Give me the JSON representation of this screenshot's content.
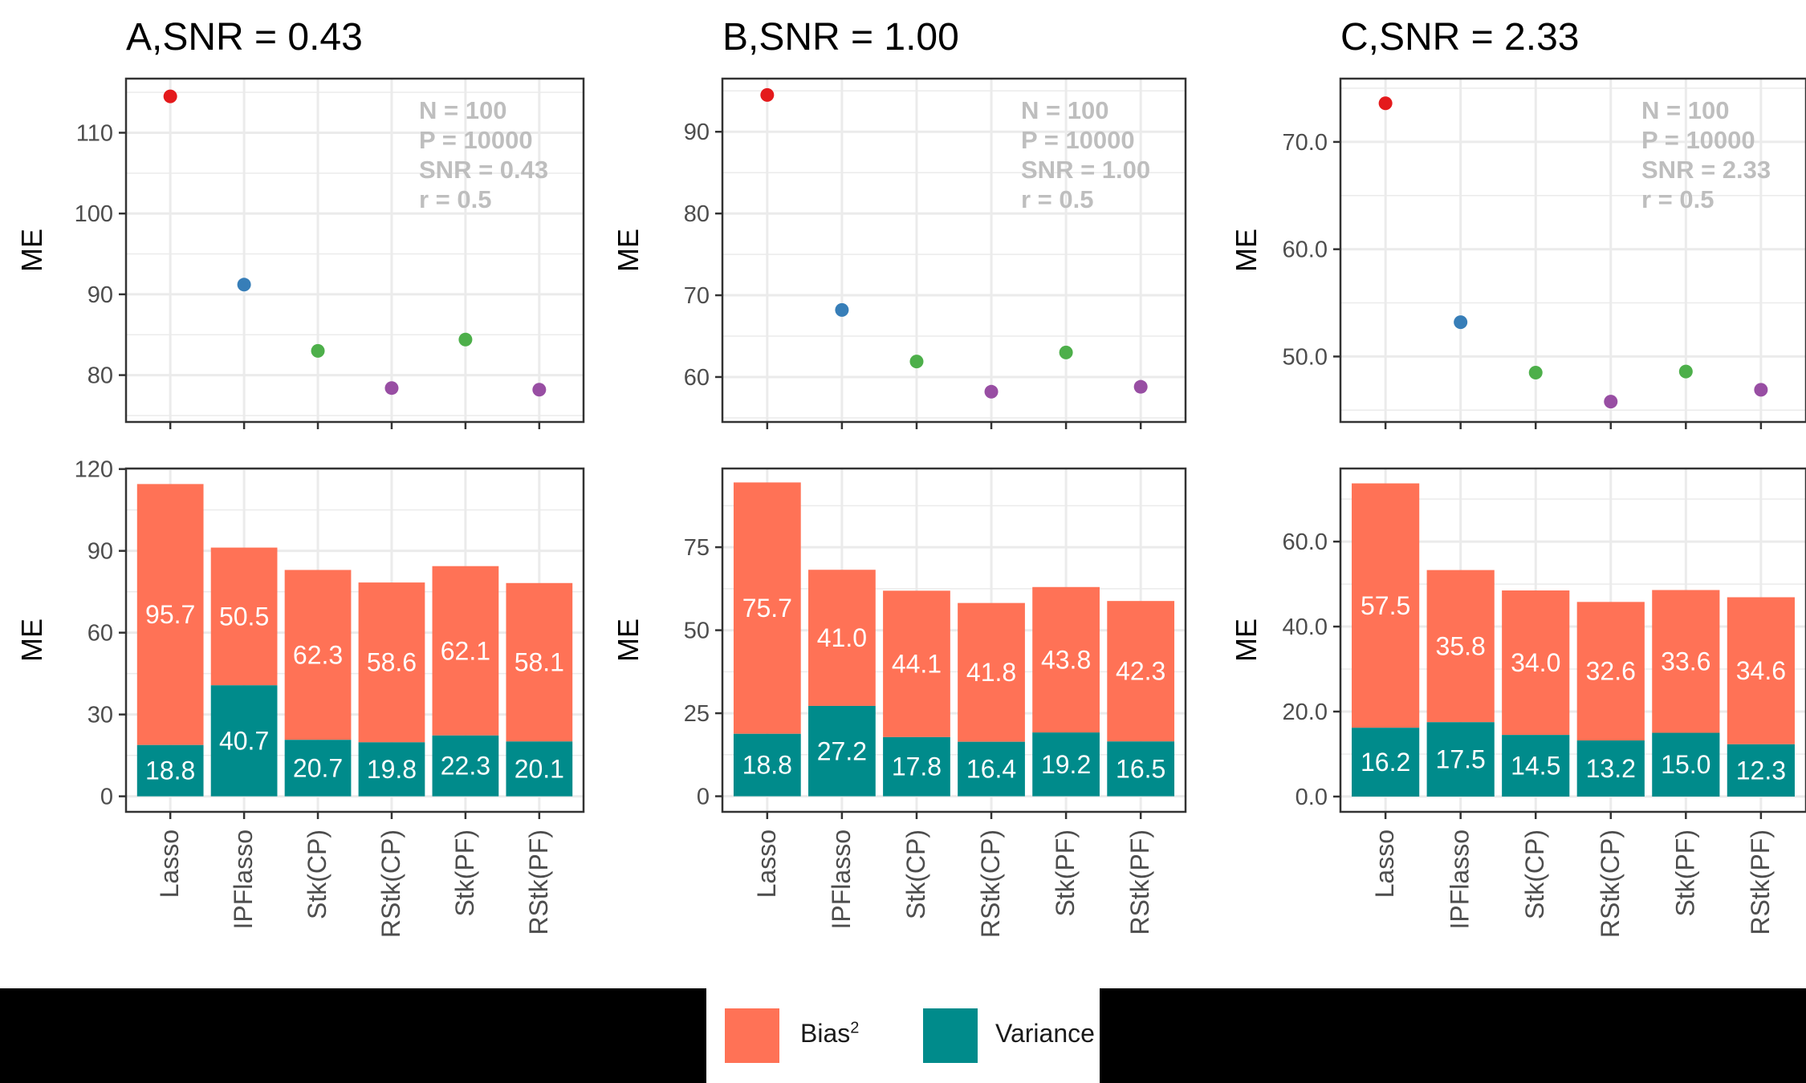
{
  "colors": {
    "bias": "#FF7256",
    "variance": "#008B8B",
    "lasso": "#E41A1C",
    "ipf": "#377EB8",
    "stk": "#4DAF4A",
    "rstk": "#984EA3",
    "annotation": "#BEBEBE",
    "grid": "#EBEBEB"
  },
  "legend": {
    "bias_label": "Bias",
    "bias_sup": "2",
    "variance_label": "Variance"
  },
  "chart_data": [
    {
      "type": "scatter",
      "title": "A,SNR = 0.43",
      "ylabel": "ME",
      "categories": [
        "Lasso",
        "IPFlasso",
        "Stk(CP)",
        "RStk(CP)",
        "Stk(PF)",
        "RStk(PF)"
      ],
      "point_colors": [
        "lasso",
        "ipf",
        "stk",
        "rstk",
        "stk",
        "rstk"
      ],
      "total": [
        114.5,
        91.2,
        83.0,
        78.4,
        84.4,
        78.2
      ],
      "yticks": [
        "80",
        "90",
        "100",
        "110"
      ],
      "ytick_values": [
        80,
        90,
        100,
        110
      ],
      "ylim": [
        74.2,
        116.7
      ],
      "annotation": [
        "N = 100",
        "P = 10000",
        "SNR = 0.43",
        "r = 0.5"
      ],
      "grid": true
    },
    {
      "type": "bar",
      "stacked": true,
      "ylabel": "ME",
      "categories": [
        "Lasso",
        "IPFlasso",
        "Stk(CP)",
        "RStk(CP)",
        "Stk(PF)",
        "RStk(PF)"
      ],
      "series": [
        {
          "name": "Variance",
          "values": [
            18.8,
            40.7,
            20.7,
            19.8,
            22.3,
            20.1
          ],
          "labels": [
            "18.8",
            "40.7",
            "20.7",
            "19.8",
            "22.3",
            "20.1"
          ]
        },
        {
          "name": "Bias2",
          "values": [
            95.7,
            50.5,
            62.3,
            58.6,
            62.1,
            58.1
          ],
          "labels": [
            "95.7",
            "50.5",
            "62.3",
            "58.6",
            "62.1",
            "58.1"
          ]
        }
      ],
      "yticks": [
        "0",
        "30",
        "60",
        "90",
        "120"
      ],
      "ytick_values": [
        0,
        30,
        60,
        90,
        120
      ],
      "ylim": [
        -5.7,
        120.2
      ],
      "grid": true
    },
    {
      "type": "scatter",
      "title": "B,SNR = 1.00",
      "ylabel": "ME",
      "categories": [
        "Lasso",
        "IPFlasso",
        "Stk(CP)",
        "RStk(CP)",
        "Stk(PF)",
        "RStk(PF)"
      ],
      "point_colors": [
        "lasso",
        "ipf",
        "stk",
        "rstk",
        "stk",
        "rstk"
      ],
      "total": [
        94.5,
        68.2,
        61.9,
        58.2,
        63.0,
        58.8
      ],
      "yticks": [
        "60",
        "70",
        "80",
        "90"
      ],
      "ytick_values": [
        60,
        70,
        80,
        90
      ],
      "ylim": [
        54.5,
        96.5
      ],
      "annotation": [
        "N = 100",
        "P = 10000",
        "SNR = 1.00",
        "r = 0.5"
      ],
      "grid": true
    },
    {
      "type": "bar",
      "stacked": true,
      "ylabel": "ME",
      "categories": [
        "Lasso",
        "IPFlasso",
        "Stk(CP)",
        "RStk(CP)",
        "Stk(PF)",
        "RStk(PF)"
      ],
      "series": [
        {
          "name": "Variance",
          "values": [
            18.8,
            27.2,
            17.8,
            16.4,
            19.2,
            16.5
          ],
          "labels": [
            "18.8",
            "27.2",
            "17.8",
            "16.4",
            "19.2",
            "16.5"
          ]
        },
        {
          "name": "Bias2",
          "values": [
            75.7,
            41.0,
            44.1,
            41.8,
            43.8,
            42.3
          ],
          "labels": [
            "75.7",
            "41.0",
            "44.1",
            "41.8",
            "43.8",
            "42.3"
          ]
        }
      ],
      "yticks": [
        "0",
        "25",
        "50",
        "75"
      ],
      "ytick_values": [
        0,
        25,
        50,
        75
      ],
      "ylim": [
        -4.7,
        98.7
      ],
      "grid": true
    },
    {
      "type": "scatter",
      "title": "C,SNR = 2.33",
      "ylabel": "ME",
      "categories": [
        "Lasso",
        "IPFlasso",
        "Stk(CP)",
        "RStk(CP)",
        "Stk(PF)",
        "RStk(PF)"
      ],
      "point_colors": [
        "lasso",
        "ipf",
        "stk",
        "rstk",
        "stk",
        "rstk"
      ],
      "total": [
        73.6,
        53.2,
        48.5,
        45.8,
        48.6,
        46.9
      ],
      "yticks": [
        "50.0",
        "60.0",
        "70.0"
      ],
      "ytick_values": [
        50,
        60,
        70
      ],
      "ylim": [
        43.9,
        75.9
      ],
      "annotation": [
        "N = 100",
        "P = 10000",
        "SNR = 2.33",
        "r = 0.5"
      ],
      "grid": true
    },
    {
      "type": "bar",
      "stacked": true,
      "ylabel": "ME",
      "categories": [
        "Lasso",
        "IPFlasso",
        "Stk(CP)",
        "RStk(CP)",
        "Stk(PF)",
        "RStk(PF)"
      ],
      "series": [
        {
          "name": "Variance",
          "values": [
            16.2,
            17.5,
            14.5,
            13.2,
            15.0,
            12.3
          ],
          "labels": [
            "16.2",
            "17.5",
            "14.5",
            "13.2",
            "15.0",
            "12.3"
          ]
        },
        {
          "name": "Bias2",
          "values": [
            57.5,
            35.8,
            34.0,
            32.6,
            33.6,
            34.6
          ],
          "labels": [
            "57.5",
            "35.8",
            "34.0",
            "32.6",
            "33.6",
            "34.6"
          ]
        }
      ],
      "yticks": [
        "0.0",
        "20.0",
        "40.0",
        "60.0"
      ],
      "ytick_values": [
        0,
        20,
        40,
        60
      ],
      "ylim": [
        -3.6,
        77.2
      ],
      "grid": true
    }
  ]
}
